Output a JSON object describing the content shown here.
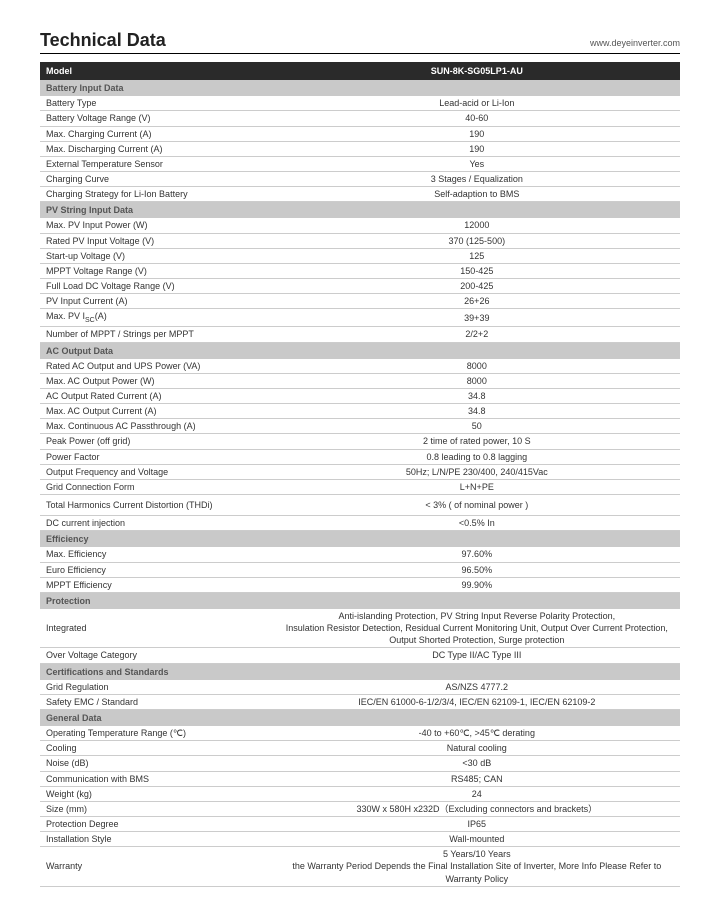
{
  "header": {
    "title": "Technical Data",
    "url": "www.deyeinverter.com"
  },
  "table": {
    "model_label": "Model",
    "model_value": "SUN-8K-SG05LP1-AU",
    "sections": [
      {
        "title": "Battery Input Data",
        "rows": [
          {
            "label": "Battery Type",
            "value": "Lead-acid or Li-Ion"
          },
          {
            "label": "Battery Voltage Range (V)",
            "value": "40-60"
          },
          {
            "label": "Max. Charging Current (A)",
            "value": "190"
          },
          {
            "label": "Max. Discharging Current (A)",
            "value": "190"
          },
          {
            "label": "External Temperature Sensor",
            "value": "Yes"
          },
          {
            "label": "Charging Curve",
            "value": "3 Stages / Equalization"
          },
          {
            "label": "Charging Strategy for Li-Ion Battery",
            "value": "Self-adaption to BMS"
          }
        ]
      },
      {
        "title": "PV String Input Data",
        "rows": [
          {
            "label": "Max. PV Input Power (W)",
            "value": "12000"
          },
          {
            "label": "Rated PV Input Voltage (V)",
            "value": "370 (125-500)"
          },
          {
            "label": "Start-up Voltage (V)",
            "value": "125"
          },
          {
            "label": "MPPT Voltage Range (V)",
            "value": "150-425"
          },
          {
            "label": "Full Load DC Voltage Range (V)",
            "value": "200-425"
          },
          {
            "label": "PV Input Current (A)",
            "value": "26+26"
          },
          {
            "label": "Max. PV I<sub class=\"sub\">SC</sub>(A)",
            "value": "39+39",
            "html": true
          },
          {
            "label": "Number of MPPT / Strings per MPPT",
            "value": "2/2+2"
          }
        ]
      },
      {
        "title": "AC Output Data",
        "rows": [
          {
            "label": "Rated AC Output and UPS Power (VA)",
            "value": "8000"
          },
          {
            "label": "Max. AC Output Power (W)",
            "value": "8000"
          },
          {
            "label": "AC Output Rated Current (A)",
            "value": "34.8"
          },
          {
            "label": "Max. AC Output Current (A)",
            "value": "34.8"
          },
          {
            "label": "Max. Continuous AC Passthrough (A)",
            "value": "50"
          },
          {
            "label": "Peak Power (off grid)",
            "value": "2 time of rated power, 10 S"
          },
          {
            "label": "Power Factor",
            "value": "0.8 leading to 0.8 lagging"
          },
          {
            "label": "Output Frequency and Voltage",
            "value": "50Hz; L/N/PE   230/400, 240/415Vac"
          },
          {
            "label": "Grid Connection Form",
            "value": "L+N+PE"
          },
          {
            "label": "Total Harmonics Current Distortion (THDi)",
            "value": "< 3% ( of nominal power )",
            "spaced": true
          },
          {
            "label": "DC current injection",
            "value": "<0.5% In"
          }
        ]
      },
      {
        "title": "Efficiency",
        "rows": [
          {
            "label": "Max. Efficiency",
            "value": "97.60%"
          },
          {
            "label": "Euro Efficiency",
            "value": "96.50%"
          },
          {
            "label": "MPPT Efficiency",
            "value": "99.90%"
          }
        ]
      },
      {
        "title": "Protection",
        "rows": [
          {
            "label": "Integrated",
            "value": "Anti-islanding Protection, PV String Input Reverse Polarity Protection,\nInsulation Resistor Detection, Residual Current Monitoring Unit, Output Over Current Protection,\nOutput Shorted Protection, Surge protection",
            "multiline": true
          },
          {
            "label": "Over Voltage Category",
            "value": "DC Type II/AC Type III"
          }
        ]
      },
      {
        "title": "Certifications and Standards",
        "rows": [
          {
            "label": "Grid Regulation",
            "value": "AS/NZS 4777.2"
          },
          {
            "label": "Safety EMC / Standard",
            "value": "IEC/EN 61000-6-1/2/3/4, IEC/EN 62109-1, IEC/EN 62109-2"
          }
        ]
      },
      {
        "title": "General Data",
        "rows": [
          {
            "label": "Operating Temperature Range (℃)",
            "value": "-40 to +60℃, >45℃ derating"
          },
          {
            "label": "Cooling",
            "value": "Natural cooling"
          },
          {
            "label": "Noise (dB)",
            "value": "<30 dB"
          },
          {
            "label": "Communication with BMS",
            "value": "RS485; CAN"
          },
          {
            "label": "Weight (kg)",
            "value": "24"
          },
          {
            "label": "Size (mm)",
            "value": "330W x 580H x232D（Excluding connectors and brackets）"
          },
          {
            "label": "Protection Degree",
            "value": "IP65"
          },
          {
            "label": "Installation Style",
            "value": "Wall-mounted"
          },
          {
            "label": "Warranty",
            "value": "5 Years/10 Years\nthe Warranty Period Depends the Final Installation Site of Inverter, More Info Please Refer to Warranty Policy",
            "multiline": true
          }
        ]
      }
    ]
  }
}
